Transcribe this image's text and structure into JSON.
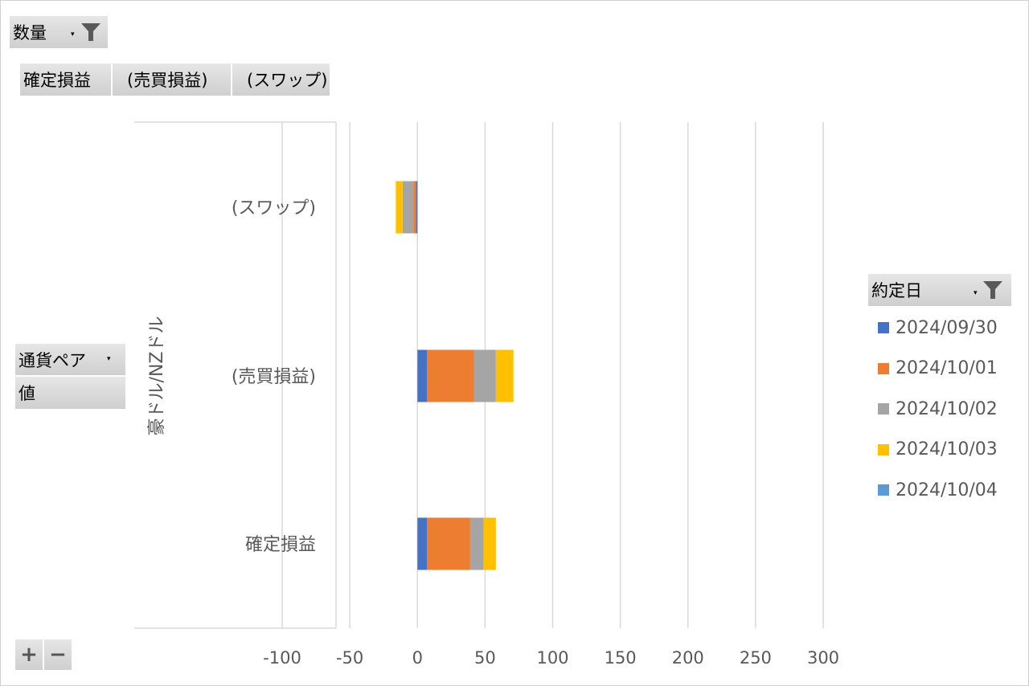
{
  "filters": {
    "quantity": {
      "label": "数量",
      "dropdown": "▾"
    },
    "columns": [
      "確定損益",
      "(売買損益)",
      "(スワップ)"
    ],
    "row_field": {
      "label": "通貨ペア",
      "dropdown": "▾"
    },
    "values_field": {
      "label": "値"
    },
    "legend_field": {
      "label": "約定日",
      "dropdown": "▾"
    }
  },
  "zoom": {
    "plus": "+",
    "minus": "−"
  },
  "colors": {
    "series": [
      "#4472C4",
      "#ED7D31",
      "#A5A5A5",
      "#FFC000",
      "#5B9BD5"
    ],
    "grid": "#d9d9d9",
    "funnel": "#595959"
  },
  "chart_data": {
    "type": "bar",
    "orientation": "horizontal",
    "stacked": true,
    "group_label": "豪ドル/NZドル",
    "categories": [
      "確定損益",
      "(売買損益)",
      "(スワップ)"
    ],
    "x_ticks": [
      "-100",
      "-50",
      "0",
      "50",
      "100",
      "150",
      "200",
      "250",
      "300"
    ],
    "xlim": [
      -100,
      300
    ],
    "grid": true,
    "legend_position": "right",
    "series": [
      {
        "name": "2024/09/30",
        "values": [
          7,
          7,
          -1
        ]
      },
      {
        "name": "2024/10/01",
        "values": [
          32,
          35,
          -2
        ]
      },
      {
        "name": "2024/10/02",
        "values": [
          10,
          16,
          -8
        ]
      },
      {
        "name": "2024/10/03",
        "values": [
          9,
          13,
          -5
        ]
      },
      {
        "name": "2024/10/04",
        "values": [
          0,
          0,
          0
        ]
      }
    ]
  }
}
